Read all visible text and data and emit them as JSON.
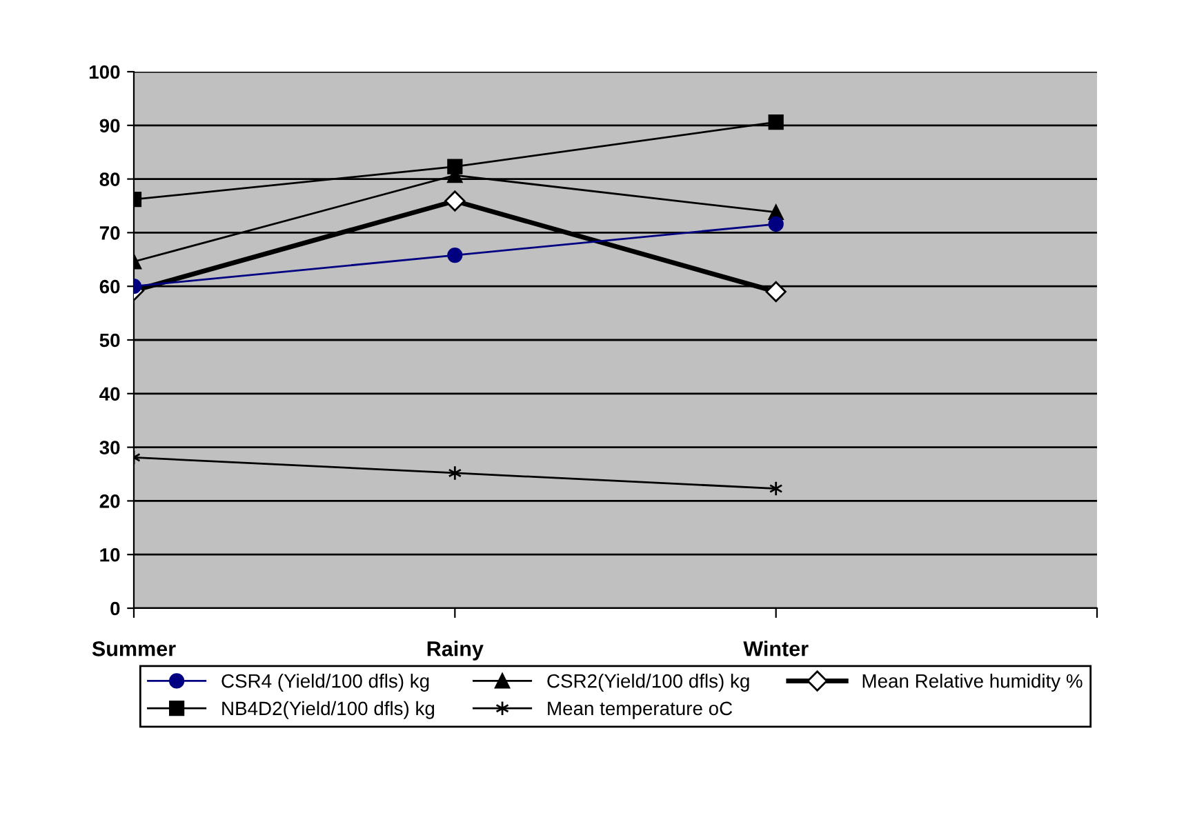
{
  "chart_data": {
    "type": "line",
    "categories": [
      "Summer",
      "Rainy",
      "Winter",
      null
    ],
    "series": [
      {
        "name": "CSR4 (Yield/100 dfls) kg",
        "color": "#000080",
        "marker": "circle",
        "values": [
          60,
          65.8,
          71.6,
          null
        ]
      },
      {
        "name": "NB4D2(Yield/100 dfls) kg",
        "color": "#000000",
        "marker": "square",
        "values": [
          76.2,
          82.3,
          90.6,
          null
        ]
      },
      {
        "name": "CSR2(Yield/100 dfls) kg",
        "color": "#000000",
        "marker": "triangle",
        "values": [
          64.6,
          80.7,
          73.8,
          null
        ]
      },
      {
        "name": "Mean temperature oC",
        "color": "#000000",
        "marker": "cross",
        "values": [
          28.1,
          25.2,
          22.3,
          null
        ]
      },
      {
        "name": "Mean Relative humidity %",
        "color": "#000000",
        "marker": "diamond",
        "values": [
          59.2,
          75.9,
          59,
          null
        ]
      }
    ],
    "ylim": [
      0,
      100
    ],
    "yticks": [
      0,
      10,
      20,
      30,
      40,
      50,
      60,
      70,
      80,
      90,
      100
    ],
    "grid": "y",
    "legend": "bottom",
    "line_style": "solid"
  }
}
